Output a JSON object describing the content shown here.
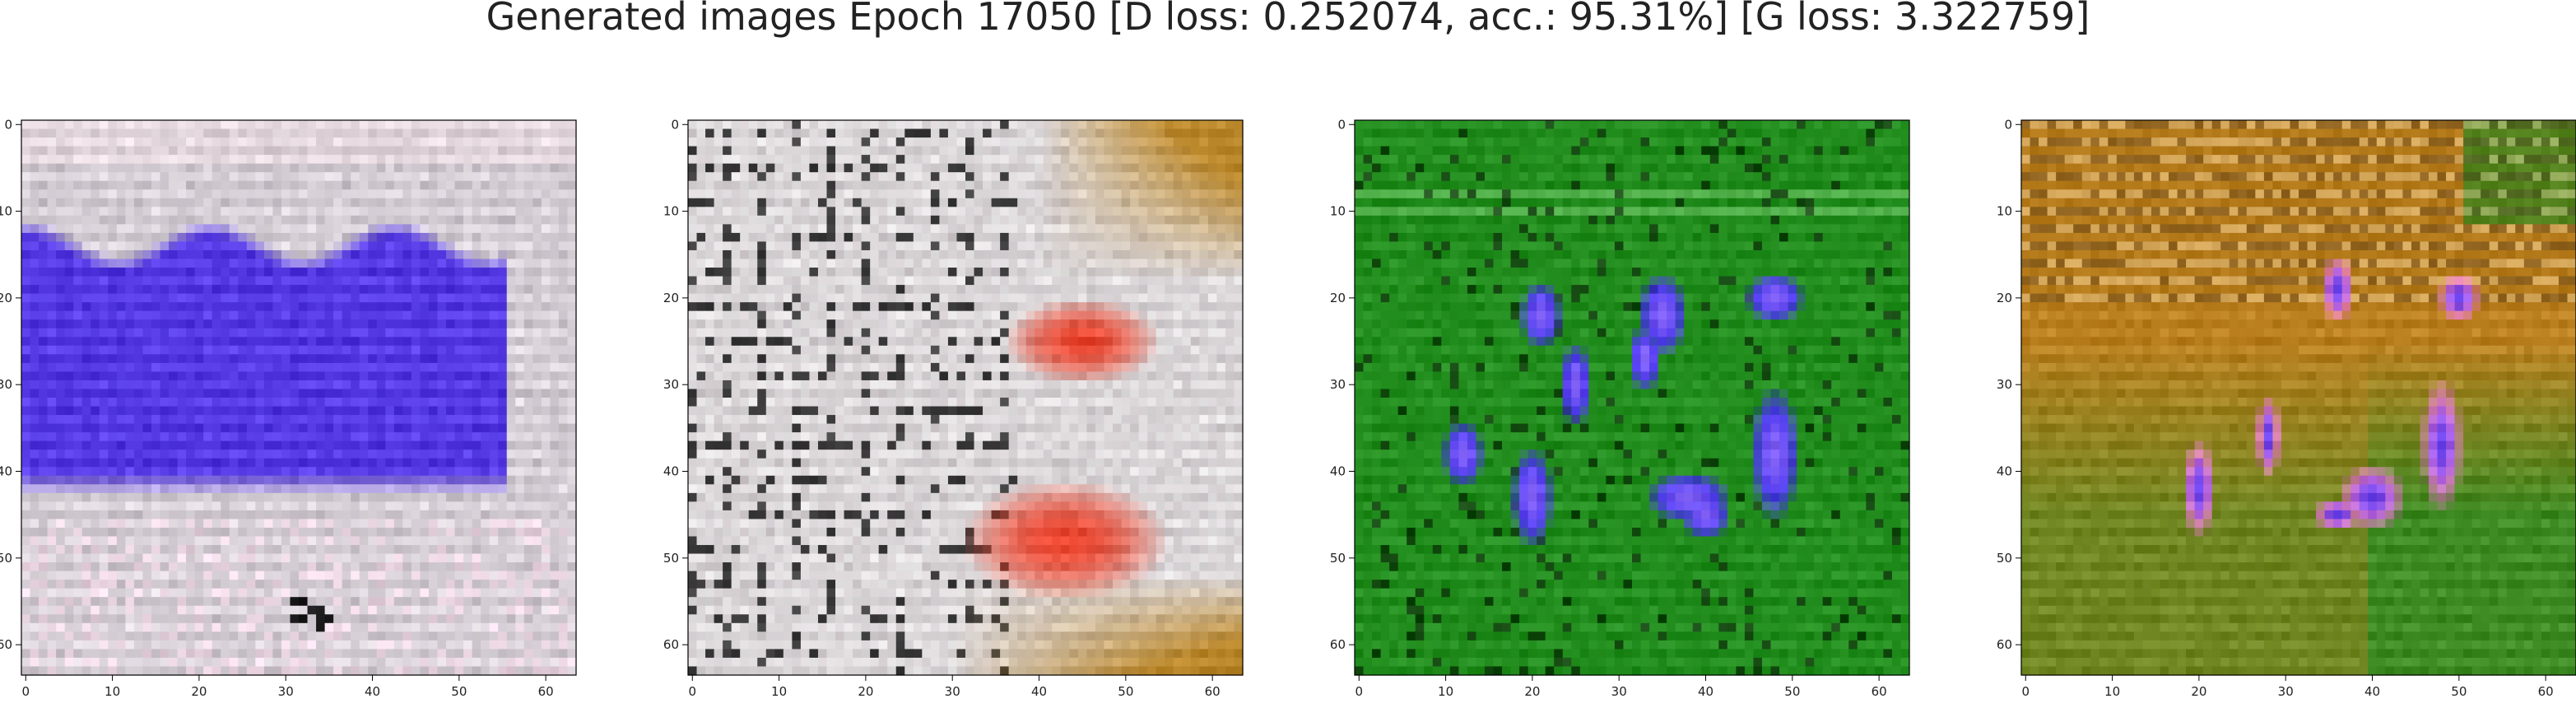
{
  "figure": {
    "title": "Generated images Epoch 17050 [D loss: 0.252074, acc.: 95.31%] [G loss: 3.322759]"
  },
  "chart_data": [
    {
      "type": "image",
      "subject": "GAN sample 1 - pale grey/white background with large blue-purple blob band and white grid streaks",
      "palette": {
        "base": "#c9c1c9",
        "accent1": "#4a2ee0",
        "accent2": "#f2d6e6",
        "dark": "#1a1a1a"
      },
      "xticks": [
        "0",
        "10",
        "20",
        "30",
        "40",
        "50",
        "60"
      ],
      "yticks": [
        "0",
        "10",
        "20",
        "30",
        "40",
        "50",
        "60"
      ],
      "xlim": [
        -0.5,
        63.5
      ],
      "ylim": [
        63.5,
        -0.5
      ]
    },
    {
      "type": "image",
      "subject": "GAN sample 2 - white/grey grid pattern with red blob and brownish-orange corners",
      "palette": {
        "base": "#cfc9cc",
        "accent1": "#e83a22",
        "accent2": "#b9862a",
        "dark": "#151515"
      },
      "xticks": [
        "0",
        "10",
        "20",
        "30",
        "40",
        "50",
        "60"
      ],
      "yticks": [
        "0",
        "10",
        "20",
        "30",
        "40",
        "50",
        "60"
      ],
      "xlim": [
        -0.5,
        63.5
      ],
      "ylim": [
        63.5,
        -0.5
      ]
    },
    {
      "type": "image",
      "subject": "GAN sample 3 - green background with several vertical blue-purple blobs",
      "palette": {
        "base": "#1f8a1a",
        "accent1": "#4a35f0",
        "accent2": "#d6a6ff",
        "dark": "#0b2a08"
      },
      "xticks": [
        "0",
        "10",
        "20",
        "30",
        "40",
        "50",
        "60"
      ],
      "yticks": [
        "0",
        "10",
        "20",
        "30",
        "40",
        "50",
        "60"
      ],
      "xlim": [
        -0.5,
        63.5
      ],
      "ylim": [
        63.5,
        -0.5
      ]
    },
    {
      "type": "image",
      "subject": "GAN sample 4 - brown/orange top, green bottom with pink-blue blobs and horizontal streaks",
      "palette": {
        "base": "#b97e1e",
        "accent1": "#4a35f0",
        "accent2": "#f07ad8",
        "dark": "#2a1a08",
        "lower": "#2f8a22"
      },
      "xticks": [
        "0",
        "10",
        "20",
        "30",
        "40",
        "50",
        "60"
      ],
      "yticks": [
        "0",
        "10",
        "20",
        "30",
        "40",
        "50",
        "60"
      ],
      "xlim": [
        -0.5,
        63.5
      ],
      "ylim": [
        63.5,
        -0.5
      ]
    }
  ]
}
